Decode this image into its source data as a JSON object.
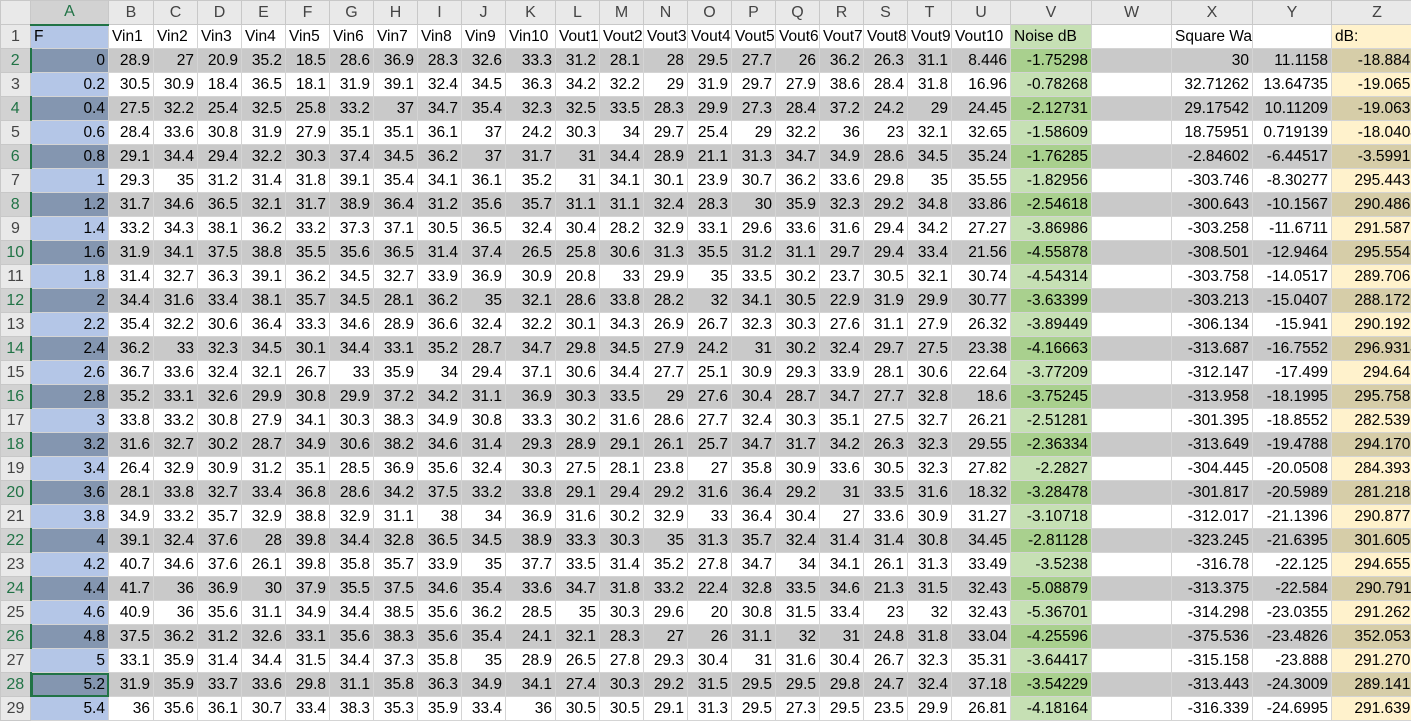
{
  "columns": [
    "A",
    "B",
    "C",
    "D",
    "E",
    "F",
    "G",
    "H",
    "I",
    "J",
    "K",
    "L",
    "M",
    "N",
    "O",
    "P",
    "Q",
    "R",
    "S",
    "T",
    "U",
    "V",
    "W",
    "X",
    "Y",
    "Z"
  ],
  "header_row": [
    "F",
    "Vin1",
    "Vin2",
    "Vin3",
    "Vin4",
    "Vin5",
    "Vin6",
    "Vin7",
    "Vin8",
    "Vin9",
    "Vin10",
    "Vout1",
    "Vout2",
    "Vout3",
    "Vout4",
    "Vout5",
    "Vout6",
    "Vout7",
    "Vout8",
    "Vout9",
    "Vout10",
    "Noise dB",
    "",
    "Square Wave:",
    "",
    "dB:"
  ],
  "rows": [
    [
      "0",
      "28.9",
      "27",
      "20.9",
      "35.2",
      "18.5",
      "28.6",
      "36.9",
      "28.3",
      "32.6",
      "33.3",
      "31.2",
      "28.1",
      "28",
      "29.5",
      "27.7",
      "26",
      "36.2",
      "26.3",
      "31.1",
      "8.446",
      "-1.75298",
      "",
      "30",
      "11.1158",
      "-18.8842"
    ],
    [
      "0.2",
      "30.5",
      "30.9",
      "18.4",
      "36.5",
      "18.1",
      "31.9",
      "39.1",
      "32.4",
      "34.5",
      "36.3",
      "34.2",
      "32.2",
      "29",
      "31.9",
      "29.7",
      "27.9",
      "38.6",
      "28.4",
      "31.8",
      "16.96",
      "-0.78268",
      "",
      "32.71262",
      "13.64735",
      "-19.0653"
    ],
    [
      "0.4",
      "27.5",
      "32.2",
      "25.4",
      "32.5",
      "25.8",
      "33.2",
      "37",
      "34.7",
      "35.4",
      "32.3",
      "32.5",
      "33.5",
      "28.3",
      "29.9",
      "27.3",
      "28.4",
      "37.2",
      "24.2",
      "29",
      "24.45",
      "-2.12731",
      "",
      "29.17542",
      "10.11209",
      "-19.0633"
    ],
    [
      "0.6",
      "28.4",
      "33.6",
      "30.8",
      "31.9",
      "27.9",
      "35.1",
      "35.1",
      "36.1",
      "37",
      "24.2",
      "30.3",
      "34",
      "29.7",
      "25.4",
      "29",
      "32.2",
      "36",
      "23",
      "32.1",
      "32.65",
      "-1.58609",
      "",
      "18.75951",
      "0.719139",
      "-18.0404"
    ],
    [
      "0.8",
      "29.1",
      "34.4",
      "29.4",
      "32.2",
      "30.3",
      "37.4",
      "34.5",
      "36.2",
      "37",
      "31.7",
      "31",
      "34.4",
      "28.9",
      "21.1",
      "31.3",
      "34.7",
      "34.9",
      "28.6",
      "34.5",
      "35.24",
      "-1.76285",
      "",
      "-2.84602",
      "-6.44517",
      "-3.59915"
    ],
    [
      "1",
      "29.3",
      "35",
      "31.2",
      "31.4",
      "31.8",
      "39.1",
      "35.4",
      "34.1",
      "36.1",
      "35.2",
      "31",
      "34.1",
      "30.1",
      "23.9",
      "30.7",
      "36.2",
      "33.6",
      "29.8",
      "35",
      "35.55",
      "-1.82956",
      "",
      "-303.746",
      "-8.30277",
      "295.4435"
    ],
    [
      "1.2",
      "31.7",
      "34.6",
      "36.5",
      "32.1",
      "31.7",
      "38.9",
      "36.4",
      "31.2",
      "35.6",
      "35.7",
      "31.1",
      "31.1",
      "32.4",
      "28.3",
      "30",
      "35.9",
      "32.3",
      "29.2",
      "34.8",
      "33.86",
      "-2.54618",
      "",
      "-300.643",
      "-10.1567",
      "290.4865"
    ],
    [
      "1.4",
      "33.2",
      "34.3",
      "38.1",
      "36.2",
      "33.2",
      "37.3",
      "37.1",
      "30.5",
      "36.5",
      "32.4",
      "30.4",
      "28.2",
      "32.9",
      "33.1",
      "29.6",
      "33.6",
      "31.6",
      "29.4",
      "34.2",
      "27.27",
      "-3.86986",
      "",
      "-303.258",
      "-11.6711",
      "291.5872"
    ],
    [
      "1.6",
      "31.9",
      "34.1",
      "37.5",
      "38.8",
      "35.5",
      "35.6",
      "36.5",
      "31.4",
      "37.4",
      "26.5",
      "25.8",
      "30.6",
      "31.3",
      "35.5",
      "31.2",
      "31.1",
      "29.7",
      "29.4",
      "33.4",
      "21.56",
      "-4.55878",
      "",
      "-308.501",
      "-12.9464",
      "295.5549"
    ],
    [
      "1.8",
      "31.4",
      "32.7",
      "36.3",
      "39.1",
      "36.2",
      "34.5",
      "32.7",
      "33.9",
      "36.9",
      "30.9",
      "20.8",
      "33",
      "29.9",
      "35",
      "33.5",
      "30.2",
      "23.7",
      "30.5",
      "32.1",
      "30.74",
      "-4.54314",
      "",
      "-303.758",
      "-14.0517",
      "289.7068"
    ],
    [
      "2",
      "34.4",
      "31.6",
      "33.4",
      "38.1",
      "35.7",
      "34.5",
      "28.1",
      "36.2",
      "35",
      "32.1",
      "28.6",
      "33.8",
      "28.2",
      "32",
      "34.1",
      "30.5",
      "22.9",
      "31.9",
      "29.9",
      "30.77",
      "-3.63399",
      "",
      "-303.213",
      "-15.0407",
      "288.1725"
    ],
    [
      "2.2",
      "35.4",
      "32.2",
      "30.6",
      "36.4",
      "33.3",
      "34.6",
      "28.9",
      "36.6",
      "32.4",
      "32.2",
      "30.1",
      "34.3",
      "26.9",
      "26.7",
      "32.3",
      "30.3",
      "27.6",
      "31.1",
      "27.9",
      "26.32",
      "-3.89449",
      "",
      "-306.134",
      "-15.941",
      "290.1926"
    ],
    [
      "2.4",
      "36.2",
      "33",
      "32.3",
      "34.5",
      "30.1",
      "34.4",
      "33.1",
      "35.2",
      "28.7",
      "34.7",
      "29.8",
      "34.5",
      "27.9",
      "24.2",
      "31",
      "30.2",
      "32.4",
      "29.7",
      "27.5",
      "23.38",
      "-4.16663",
      "",
      "-313.687",
      "-16.7552",
      "296.9314"
    ],
    [
      "2.6",
      "36.7",
      "33.6",
      "32.4",
      "32.1",
      "26.7",
      "33",
      "35.9",
      "34",
      "29.4",
      "37.1",
      "30.6",
      "34.4",
      "27.7",
      "25.1",
      "30.9",
      "29.3",
      "33.9",
      "28.1",
      "30.6",
      "22.64",
      "-3.77209",
      "",
      "-312.147",
      "-17.499",
      "294.648"
    ],
    [
      "2.8",
      "35.2",
      "33.1",
      "32.6",
      "29.9",
      "30.8",
      "29.9",
      "37.2",
      "34.2",
      "31.1",
      "36.9",
      "30.3",
      "33.5",
      "29",
      "27.6",
      "30.4",
      "28.7",
      "34.7",
      "27.7",
      "32.8",
      "18.6",
      "-3.75245",
      "",
      "-313.958",
      "-18.1995",
      "295.7585"
    ],
    [
      "3",
      "33.8",
      "33.2",
      "30.8",
      "27.9",
      "34.1",
      "30.3",
      "38.3",
      "34.9",
      "30.8",
      "33.3",
      "30.2",
      "31.6",
      "28.6",
      "27.7",
      "32.4",
      "30.3",
      "35.1",
      "27.5",
      "32.7",
      "26.21",
      "-2.51281",
      "",
      "-301.395",
      "-18.8552",
      "282.5396"
    ],
    [
      "3.2",
      "31.6",
      "32.7",
      "30.2",
      "28.7",
      "34.9",
      "30.6",
      "38.2",
      "34.6",
      "31.4",
      "29.3",
      "28.9",
      "29.1",
      "26.1",
      "25.7",
      "34.7",
      "31.7",
      "34.2",
      "26.3",
      "32.3",
      "29.55",
      "-2.36334",
      "",
      "-313.649",
      "-19.4788",
      "294.1703"
    ],
    [
      "3.4",
      "26.4",
      "32.9",
      "30.9",
      "31.2",
      "35.1",
      "28.5",
      "36.9",
      "35.6",
      "32.4",
      "30.3",
      "27.5",
      "28.1",
      "23.8",
      "27",
      "35.8",
      "30.9",
      "33.6",
      "30.5",
      "32.3",
      "27.82",
      "-2.2827",
      "",
      "-304.445",
      "-20.0508",
      "284.3938"
    ],
    [
      "3.6",
      "28.1",
      "33.8",
      "32.7",
      "33.4",
      "36.8",
      "28.6",
      "34.2",
      "37.5",
      "33.2",
      "33.8",
      "29.1",
      "29.4",
      "29.2",
      "31.6",
      "36.4",
      "29.2",
      "31",
      "33.5",
      "31.6",
      "18.32",
      "-3.28478",
      "",
      "-301.817",
      "-20.5989",
      "281.2183"
    ],
    [
      "3.8",
      "34.9",
      "33.2",
      "35.7",
      "32.9",
      "38.8",
      "32.9",
      "31.1",
      "38",
      "34",
      "36.9",
      "31.6",
      "30.2",
      "32.9",
      "33",
      "36.4",
      "30.4",
      "27",
      "33.6",
      "30.9",
      "31.27",
      "-3.10718",
      "",
      "-312.017",
      "-21.1396",
      "290.8777"
    ],
    [
      "4",
      "39.1",
      "32.4",
      "37.6",
      "28",
      "39.8",
      "34.4",
      "32.8",
      "36.5",
      "34.5",
      "38.9",
      "33.3",
      "30.3",
      "35",
      "31.3",
      "35.7",
      "32.4",
      "31.4",
      "31.4",
      "30.8",
      "34.45",
      "-2.81128",
      "",
      "-323.245",
      "-21.6395",
      "301.6056"
    ],
    [
      "4.2",
      "40.7",
      "34.6",
      "37.6",
      "26.1",
      "39.8",
      "35.8",
      "35.7",
      "33.9",
      "35",
      "37.7",
      "33.5",
      "31.4",
      "35.2",
      "27.8",
      "34.7",
      "34",
      "34.1",
      "26.1",
      "31.3",
      "33.49",
      "-3.5238",
      "",
      "-316.78",
      "-22.125",
      "294.6551"
    ],
    [
      "4.4",
      "41.7",
      "36",
      "36.9",
      "30",
      "37.9",
      "35.5",
      "37.5",
      "34.6",
      "35.4",
      "33.6",
      "34.7",
      "31.8",
      "33.2",
      "22.4",
      "32.8",
      "33.5",
      "34.6",
      "21.3",
      "31.5",
      "32.43",
      "-5.08879",
      "",
      "-313.375",
      "-22.584",
      "290.7911"
    ],
    [
      "4.6",
      "40.9",
      "36",
      "35.6",
      "31.1",
      "34.9",
      "34.4",
      "38.5",
      "35.6",
      "36.2",
      "28.5",
      "35",
      "30.3",
      "29.6",
      "20",
      "30.8",
      "31.5",
      "33.4",
      "23",
      "32",
      "32.43",
      "-5.36701",
      "",
      "-314.298",
      "-23.0355",
      "291.2625"
    ],
    [
      "4.8",
      "37.5",
      "36.2",
      "31.2",
      "32.6",
      "33.1",
      "35.6",
      "38.3",
      "35.6",
      "35.4",
      "24.1",
      "32.1",
      "28.3",
      "27",
      "26",
      "31.1",
      "32",
      "31",
      "24.8",
      "31.8",
      "33.04",
      "-4.25596",
      "",
      "-375.536",
      "-23.4826",
      "352.0532"
    ],
    [
      "5",
      "33.1",
      "35.9",
      "31.4",
      "34.4",
      "31.5",
      "34.4",
      "37.3",
      "35.8",
      "35",
      "28.9",
      "26.5",
      "27.8",
      "29.3",
      "30.4",
      "31",
      "31.6",
      "30.4",
      "26.7",
      "32.3",
      "35.31",
      "-3.64417",
      "",
      "-315.158",
      "-23.888",
      "291.2705"
    ],
    [
      "5.2",
      "31.9",
      "35.9",
      "33.7",
      "33.6",
      "29.8",
      "31.1",
      "35.8",
      "36.3",
      "34.9",
      "34.1",
      "27.4",
      "30.3",
      "29.2",
      "31.5",
      "29.5",
      "29.5",
      "29.8",
      "24.7",
      "32.4",
      "37.18",
      "-3.54229",
      "",
      "-313.443",
      "-24.3009",
      "289.1416"
    ],
    [
      "5.4",
      "36",
      "35.6",
      "36.1",
      "30.7",
      "33.4",
      "38.3",
      "35.3",
      "35.9",
      "33.4",
      "36",
      "30.5",
      "30.5",
      "29.1",
      "31.3",
      "29.5",
      "27.3",
      "29.5",
      "23.5",
      "29.9",
      "26.81",
      "-4.18164",
      "",
      "-316.339",
      "-24.6995",
      "291.6399"
    ]
  ],
  "selected_row": 28,
  "colors": {
    "header_bg": "#e9e9e9",
    "band_gray": "#c9c9c9",
    "col_a": "#b4c6e7",
    "col_v": "#c6e0b4",
    "col_z": "#fff2cc",
    "excel_green": "#217346"
  }
}
